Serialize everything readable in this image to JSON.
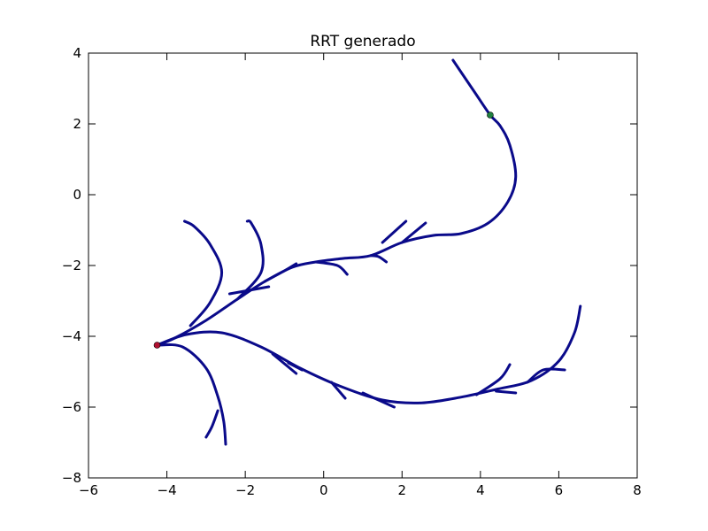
{
  "chart_data": {
    "type": "scatter",
    "title": "RRT generado",
    "xlabel": "",
    "ylabel": "",
    "xlim": [
      -6,
      8
    ],
    "ylim": [
      -8,
      4
    ],
    "xticks": [
      "−6",
      "−4",
      "−2",
      "0",
      "2",
      "4",
      "6",
      "8"
    ],
    "yticks": [
      "4",
      "2",
      "0",
      "−2",
      "−4",
      "−6",
      "−8"
    ],
    "grid": false,
    "colors": {
      "tree": "#0a0a8a",
      "start": "#b01030",
      "goal": "#208040"
    },
    "start_point": {
      "x": -4.25,
      "y": -4.25
    },
    "goal_point": {
      "x": 4.25,
      "y": 2.25
    },
    "branches": [
      {
        "points": [
          [
            -4.25,
            -4.25
          ],
          [
            -3.8,
            -4.05
          ],
          [
            -3.0,
            -3.55
          ],
          [
            -2.2,
            -2.95
          ],
          [
            -1.5,
            -2.45
          ],
          [
            -0.8,
            -2.05
          ],
          [
            -0.2,
            -1.9
          ],
          [
            0.5,
            -1.8
          ],
          [
            1.2,
            -1.72
          ],
          [
            2.0,
            -1.35
          ],
          [
            2.8,
            -1.15
          ],
          [
            3.5,
            -1.1
          ],
          [
            4.2,
            -0.8
          ],
          [
            4.7,
            -0.2
          ],
          [
            4.9,
            0.5
          ],
          [
            4.75,
            1.4
          ],
          [
            4.5,
            1.95
          ],
          [
            4.25,
            2.25
          ],
          [
            3.85,
            2.9
          ],
          [
            3.3,
            3.8
          ]
        ]
      },
      {
        "points": [
          [
            -3.4,
            -3.7
          ],
          [
            -2.9,
            -3.05
          ],
          [
            -2.6,
            -2.2
          ],
          [
            -2.9,
            -1.4
          ],
          [
            -3.3,
            -0.9
          ],
          [
            -3.55,
            -0.75
          ]
        ]
      },
      {
        "points": [
          [
            -2.2,
            -2.95
          ],
          [
            -1.6,
            -2.2
          ],
          [
            -1.6,
            -1.4
          ],
          [
            -1.85,
            -0.8
          ],
          [
            -1.95,
            -0.75
          ]
        ]
      },
      {
        "points": [
          [
            -2.4,
            -2.8
          ],
          [
            -1.4,
            -2.6
          ]
        ]
      },
      {
        "points": [
          [
            -1.5,
            -2.45
          ],
          [
            -1.0,
            -2.15
          ],
          [
            -0.7,
            -1.95
          ]
        ]
      },
      {
        "points": [
          [
            -0.2,
            -1.9
          ],
          [
            0.35,
            -2.0
          ],
          [
            0.6,
            -2.25
          ]
        ]
      },
      {
        "points": [
          [
            1.2,
            -1.72
          ],
          [
            1.4,
            -1.75
          ],
          [
            1.6,
            -1.9
          ]
        ]
      },
      {
        "points": [
          [
            1.5,
            -1.35
          ],
          [
            2.1,
            -0.75
          ]
        ]
      },
      {
        "points": [
          [
            2.0,
            -1.35
          ],
          [
            2.6,
            -0.8
          ]
        ]
      },
      {
        "points": [
          [
            -4.25,
            -4.25
          ],
          [
            -3.6,
            -4.3
          ],
          [
            -3.0,
            -4.9
          ],
          [
            -2.7,
            -5.7
          ],
          [
            -2.55,
            -6.4
          ],
          [
            -2.5,
            -7.05
          ]
        ]
      },
      {
        "points": [
          [
            -2.7,
            -6.1
          ],
          [
            -2.85,
            -6.55
          ],
          [
            -3.0,
            -6.85
          ]
        ]
      },
      {
        "points": [
          [
            -4.25,
            -4.25
          ],
          [
            -3.5,
            -3.95
          ],
          [
            -2.6,
            -3.9
          ],
          [
            -1.6,
            -4.3
          ],
          [
            -0.6,
            -4.9
          ],
          [
            0.4,
            -5.4
          ],
          [
            1.5,
            -5.8
          ],
          [
            2.5,
            -5.88
          ],
          [
            3.5,
            -5.72
          ],
          [
            4.4,
            -5.5
          ],
          [
            5.3,
            -5.25
          ],
          [
            6.0,
            -4.7
          ],
          [
            6.4,
            -3.9
          ],
          [
            6.55,
            -3.15
          ]
        ]
      },
      {
        "points": [
          [
            -1.3,
            -4.5
          ],
          [
            -0.7,
            -5.05
          ]
        ]
      },
      {
        "points": [
          [
            -0.9,
            -4.75
          ],
          [
            -0.55,
            -4.95
          ]
        ]
      },
      {
        "points": [
          [
            0.2,
            -5.3
          ],
          [
            0.55,
            -5.75
          ]
        ]
      },
      {
        "points": [
          [
            1.0,
            -5.6
          ],
          [
            1.8,
            -6.0
          ]
        ]
      },
      {
        "points": [
          [
            3.9,
            -5.65
          ],
          [
            4.5,
            -5.2
          ],
          [
            4.75,
            -4.8
          ]
        ]
      },
      {
        "points": [
          [
            4.4,
            -5.55
          ],
          [
            4.9,
            -5.6
          ]
        ]
      },
      {
        "points": [
          [
            5.2,
            -5.3
          ],
          [
            5.6,
            -4.95
          ],
          [
            6.15,
            -4.95
          ]
        ]
      }
    ]
  }
}
